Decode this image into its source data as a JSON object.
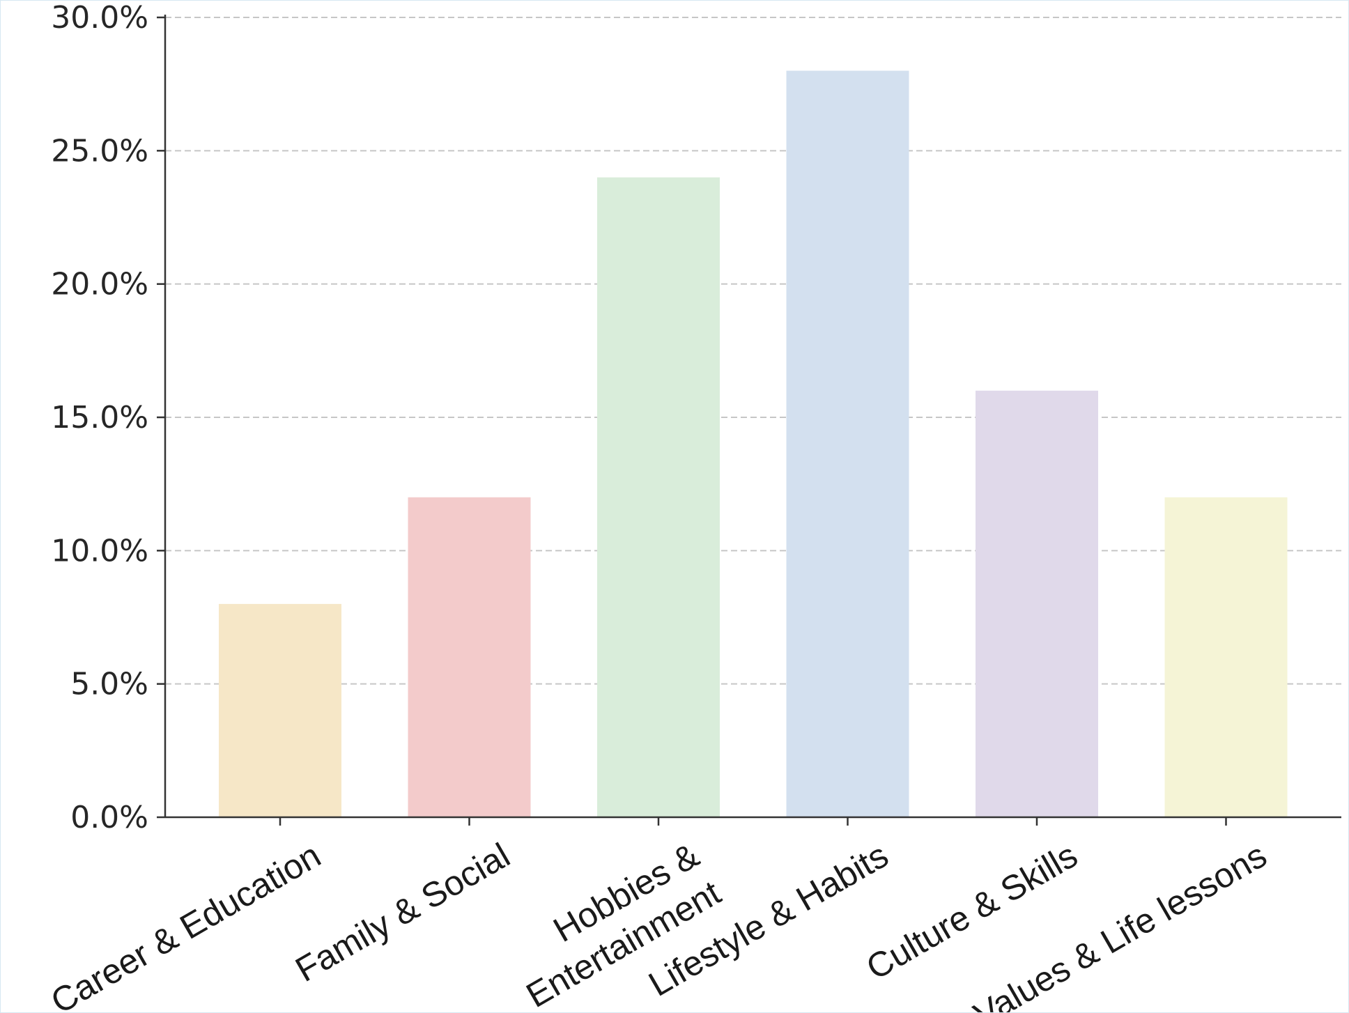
{
  "chart_data": {
    "type": "bar",
    "title": "",
    "xlabel": "",
    "ylabel": "",
    "categories": [
      [
        "Career & Education"
      ],
      [
        "Family & Social"
      ],
      [
        "Hobbies &",
        "Entertainment"
      ],
      [
        "Lifestyle & Habits"
      ],
      [
        "Culture & Skills"
      ],
      [
        "Values & Life lessons"
      ]
    ],
    "values": [
      8.0,
      12.0,
      24.0,
      28.0,
      16.0,
      12.0
    ],
    "colors": [
      "#f6e7c7",
      "#f3cbcb",
      "#d9edda",
      "#d3e0ef",
      "#e0d9ea",
      "#f5f4d6"
    ],
    "ylim": [
      0,
      30
    ],
    "yticks": [
      0,
      5,
      10,
      15,
      20,
      25,
      30
    ],
    "ytick_labels": [
      "0.0%",
      "5.0%",
      "10.0%",
      "15.0%",
      "20.0%",
      "25.0%",
      "30.0%"
    ],
    "grid": "y-dashed",
    "legend": "none"
  }
}
